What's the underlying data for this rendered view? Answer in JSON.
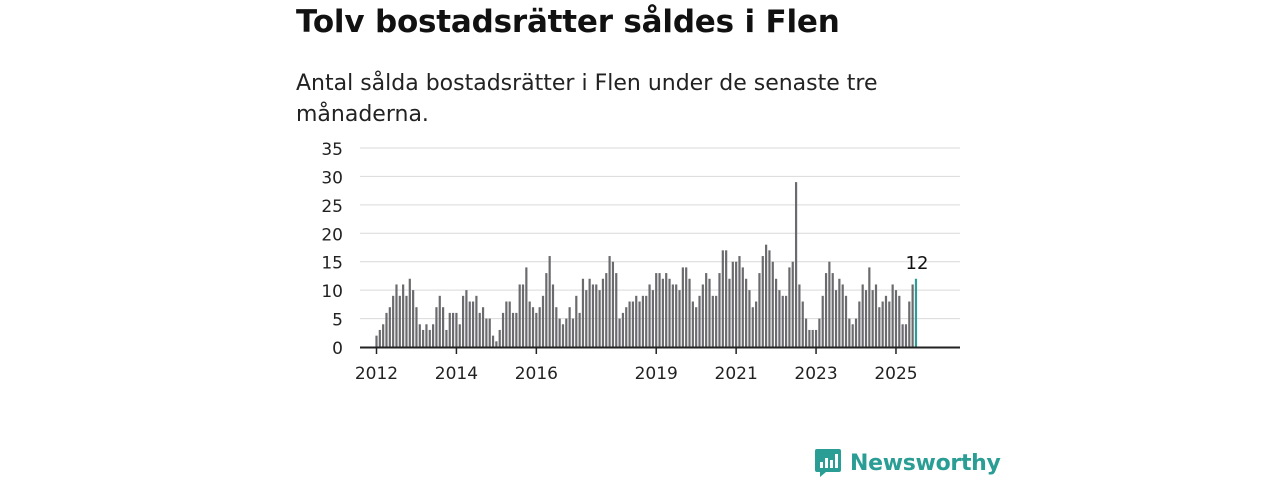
{
  "title": "Tolv bostadsrätter såldes i Flen",
  "subtitle": "Antal sålda bostadsrätter i Flen under de senaste tre månaderna.",
  "brand": {
    "name": "Newsworthy",
    "icon": "newsworthy-logo-icon"
  },
  "colors": {
    "bar": "#6b6b6f",
    "highlight": "#2a9d95",
    "grid": "#d9d9d9",
    "axis": "#222222",
    "brand": "#2a9d95"
  },
  "chart_data": {
    "type": "bar",
    "title": "Tolv bostadsrätter såldes i Flen",
    "xlabel": "",
    "ylabel": "",
    "ylim": [
      0,
      35
    ],
    "yticks": [
      0,
      5,
      10,
      15,
      20,
      25,
      30,
      35
    ],
    "xticks": [
      {
        "label": "2012",
        "index": 12
      },
      {
        "label": "2014",
        "index": 36
      },
      {
        "label": "2016",
        "index": 60
      },
      {
        "label": "2019",
        "index": 96
      },
      {
        "label": "2021",
        "index": 120
      },
      {
        "label": "2023",
        "index": 144
      },
      {
        "label": "2025",
        "index": 168
      }
    ],
    "start": "2011-01",
    "frequency": "monthly",
    "grid": true,
    "highlight_label": "12",
    "values": [
      0,
      0,
      0,
      0,
      0,
      0,
      0,
      0,
      0,
      0,
      0,
      0,
      2,
      3,
      4,
      6,
      7,
      9,
      11,
      9,
      11,
      9,
      12,
      10,
      7,
      4,
      3,
      4,
      3,
      4,
      7,
      9,
      7,
      3,
      6,
      6,
      6,
      4,
      9,
      10,
      8,
      8,
      9,
      6,
      7,
      5,
      5,
      2,
      1,
      3,
      6,
      8,
      8,
      6,
      6,
      11,
      11,
      14,
      8,
      7,
      6,
      7,
      9,
      13,
      16,
      11,
      7,
      5,
      4,
      5,
      7,
      5,
      9,
      6,
      12,
      10,
      12,
      11,
      11,
      10,
      12,
      13,
      16,
      15,
      13,
      5,
      6,
      7,
      8,
      8,
      9,
      8,
      9,
      9,
      11,
      10,
      13,
      13,
      12,
      13,
      12,
      11,
      11,
      10,
      14,
      14,
      12,
      8,
      7,
      9,
      11,
      13,
      12,
      9,
      9,
      13,
      17,
      17,
      12,
      15,
      15,
      16,
      14,
      12,
      10,
      7,
      8,
      13,
      16,
      18,
      17,
      15,
      12,
      10,
      9,
      9,
      14,
      15,
      29,
      11,
      8,
      5,
      3,
      3,
      3,
      5,
      9,
      13,
      15,
      13,
      10,
      12,
      11,
      9,
      5,
      4,
      5,
      8,
      11,
      10,
      14,
      10,
      11,
      7,
      8,
      9,
      8,
      11,
      10,
      9,
      4,
      4,
      8,
      11,
      12
    ]
  }
}
